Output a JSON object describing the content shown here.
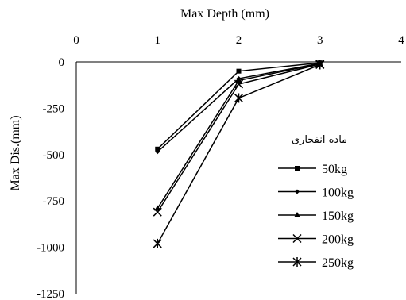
{
  "chart_data": {
    "type": "line",
    "title": "",
    "xlabel": "Max Depth (mm)",
    "ylabel": "Max Dis.(mm)",
    "xlim": [
      0,
      4
    ],
    "ylim": [
      -1250,
      0
    ],
    "xticks": [
      "0",
      "1",
      "2",
      "3",
      "4"
    ],
    "yticks": [
      "0",
      "-250",
      "-500",
      "-750",
      "-1000",
      "-1250"
    ],
    "x_axis_position": "top",
    "grid": false,
    "legend": {
      "title": "ماده انفجاری",
      "placement": "right"
    },
    "x": [
      1,
      2,
      3
    ],
    "series": [
      {
        "name": "50kg",
        "marker": "square",
        "values": [
          -470,
          -50,
          -5
        ]
      },
      {
        "name": "100kg",
        "marker": "diamond",
        "values": [
          -485,
          -90,
          -8
        ]
      },
      {
        "name": "150kg",
        "marker": "triangle",
        "values": [
          -790,
          -100,
          -10
        ]
      },
      {
        "name": "200kg",
        "marker": "x",
        "values": [
          -810,
          -120,
          -12
        ]
      },
      {
        "name": "250kg",
        "marker": "star",
        "values": [
          -980,
          -195,
          -15
        ]
      }
    ],
    "colors": {
      "line": "#000000",
      "axis": "#000000",
      "background": "#ffffff"
    }
  }
}
